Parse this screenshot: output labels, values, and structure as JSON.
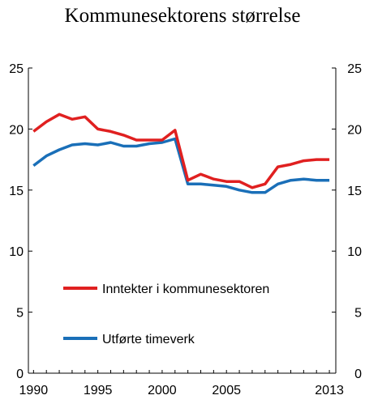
{
  "chart_data": {
    "type": "line",
    "title": "Kommunesektorens størrelse",
    "x_ticks": [
      "1990",
      "1995",
      "2000",
      "2005",
      "2013"
    ],
    "y_ticks": [
      "0",
      "5",
      "10",
      "15",
      "20",
      "25"
    ],
    "ylim": [
      0,
      25
    ],
    "xlim": [
      1989.6,
      2013.5
    ],
    "grid": false,
    "legend_placement": "center-left",
    "x": [
      1990,
      1991,
      1992,
      1993,
      1994,
      1995,
      1996,
      1997,
      1998,
      1999,
      2000,
      2001,
      2002,
      2003,
      2004,
      2005,
      2006,
      2007,
      2008,
      2009,
      2010,
      2011,
      2012,
      2013
    ],
    "series": [
      {
        "name": "Inntekter i kommunesektoren",
        "color": "#e02020",
        "values": [
          19.8,
          20.6,
          21.2,
          20.8,
          21.0,
          20.0,
          19.8,
          19.5,
          19.1,
          19.1,
          19.1,
          19.9,
          15.8,
          16.3,
          15.9,
          15.7,
          15.7,
          15.2,
          15.5,
          16.9,
          17.1,
          17.4,
          17.5,
          17.5
        ]
      },
      {
        "name": "Utførte timeverk",
        "color": "#1a6fb8",
        "values": [
          17.0,
          17.8,
          18.3,
          18.7,
          18.8,
          18.7,
          18.9,
          18.6,
          18.6,
          18.8,
          18.9,
          19.2,
          15.5,
          15.5,
          15.4,
          15.3,
          15.0,
          14.8,
          14.8,
          15.5,
          15.8,
          15.9,
          15.8,
          15.8
        ]
      }
    ]
  }
}
